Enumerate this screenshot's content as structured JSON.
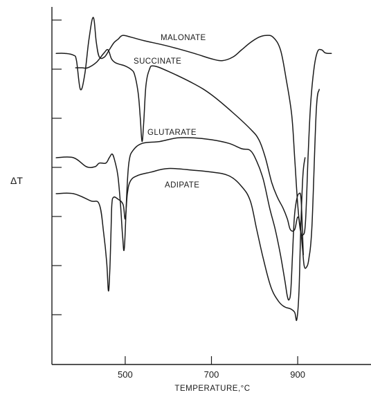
{
  "chart_data": {
    "type": "line",
    "xlabel": "TEMPERATURE,°C",
    "ylabel": "ΔT",
    "x_ticks": [
      500,
      700,
      900
    ],
    "xlim": [
      330,
      1070
    ],
    "y_ticks": 7,
    "grid": false,
    "legend": "none (curves labelled directly)",
    "series": [
      {
        "name": "MALONATE",
        "x": [
          340,
          360,
          380,
          387,
          396,
          406,
          416,
          426,
          433,
          440,
          452,
          463,
          474,
          484,
          494,
          514,
          545,
          600,
          660,
          700,
          726,
          750,
          770,
          790,
          810,
          826,
          843,
          860,
          873,
          886,
          893,
          900,
          906,
          912,
          918,
          924,
          930,
          938,
          946,
          955,
          963,
          970,
          978
        ],
        "y": [
          7.4,
          7.4,
          7.35,
          7.2,
          6.4,
          6.8,
          7.8,
          8.4,
          7.7,
          7.3,
          7.3,
          7.5,
          7.7,
          7.8,
          7.9,
          7.85,
          7.75,
          7.6,
          7.4,
          7.25,
          7.2,
          7.3,
          7.5,
          7.7,
          7.85,
          7.9,
          7.85,
          7.5,
          6.7,
          5.7,
          4.5,
          3.2,
          2.5,
          2.35,
          2.7,
          4.5,
          6.0,
          7.0,
          7.45,
          7.5,
          7.42,
          7.4,
          7.4
        ]
      },
      {
        "name": "SUCCINATE",
        "x": [
          385,
          400,
          413,
          433,
          450,
          460,
          468,
          476,
          486,
          500,
          514,
          522,
          530,
          535,
          539,
          543,
          548,
          556,
          566,
          600,
          660,
          700,
          750,
          790,
          810,
          825,
          840,
          853,
          866,
          876,
          883,
          893,
          900,
          906,
          911,
          915,
          920,
          926,
          933,
          943,
          950
        ],
        "y": [
          7.0,
          7.0,
          7.0,
          7.15,
          7.4,
          7.5,
          7.25,
          7.15,
          7.1,
          7.05,
          6.95,
          6.8,
          6.3,
          5.6,
          4.95,
          5.5,
          6.5,
          6.95,
          7.05,
          6.9,
          6.55,
          6.25,
          5.75,
          5.3,
          5.0,
          4.5,
          3.8,
          3.4,
          3.1,
          2.8,
          2.5,
          2.5,
          2.85,
          2.6,
          2.0,
          1.5,
          1.45,
          1.7,
          2.6,
          5.8,
          6.4
        ]
      },
      {
        "name": "GLUTARATE",
        "x": [
          340,
          380,
          410,
          430,
          440,
          455,
          463,
          470,
          476,
          483,
          489,
          494,
          498,
          504,
          509,
          518,
          540,
          580,
          620,
          660,
          700,
          740,
          770,
          790,
          805,
          820,
          835,
          848,
          860,
          870,
          876,
          880,
          884,
          888,
          892,
          897,
          903,
          908,
          913
        ],
        "y": [
          4.5,
          4.5,
          4.25,
          4.25,
          4.35,
          4.35,
          4.5,
          4.6,
          4.4,
          4.0,
          3.2,
          2.3,
          2.0,
          3.6,
          4.4,
          4.7,
          4.9,
          4.95,
          5.05,
          5.05,
          5.0,
          4.9,
          4.75,
          4.7,
          4.4,
          3.9,
          3.1,
          2.5,
          1.8,
          1.1,
          0.65,
          0.55,
          0.8,
          1.8,
          2.8,
          3.3,
          3.5,
          3.3,
          1.8
        ]
      },
      {
        "name": "ADIPATE",
        "x": [
          340,
          380,
          420,
          440,
          450,
          457,
          461,
          464,
          467,
          469,
          473,
          483,
          495,
          500,
          505,
          512,
          528,
          560,
          600,
          660,
          700,
          740,
          770,
          790,
          805,
          820,
          838,
          856,
          870,
          883,
          893,
          898,
          903,
          907,
          912,
          917
        ],
        "y": [
          3.5,
          3.5,
          3.3,
          3.2,
          2.4,
          1.6,
          0.8,
          1.3,
          2.4,
          3.2,
          3.4,
          3.35,
          3.2,
          2.8,
          3.5,
          3.85,
          4.0,
          4.1,
          4.2,
          4.15,
          4.1,
          4.0,
          3.7,
          3.3,
          2.5,
          1.7,
          0.9,
          0.5,
          0.35,
          0.3,
          0.2,
          0.0,
          0.8,
          2.5,
          4.0,
          4.5
        ]
      }
    ]
  }
}
